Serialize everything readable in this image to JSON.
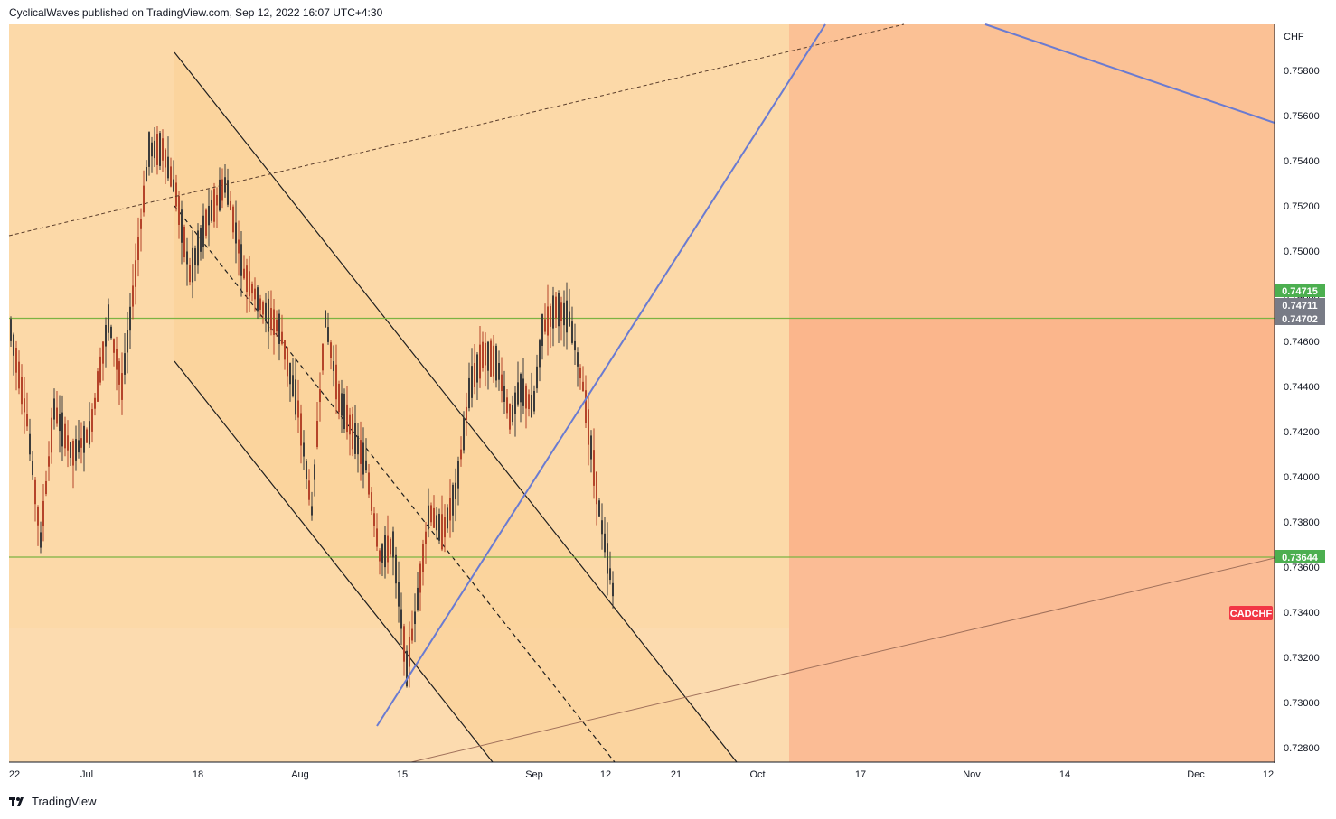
{
  "header": {
    "publisher_text": "CyclicalWaves published on TradingView.com, Sep 12, 2022 16:07 UTC+4:30"
  },
  "footer": {
    "brand": "TradingView"
  },
  "chart_data": {
    "type": "candlestick",
    "symbol": "CADCHF",
    "currency_label": "CHF",
    "ylim": [
      0.727,
      0.7595
    ],
    "y_ticks": [
      0.728,
      0.73,
      0.732,
      0.734,
      0.736,
      0.738,
      0.74,
      0.742,
      0.744,
      0.746,
      0.748,
      0.75,
      0.752,
      0.754,
      0.756,
      0.758
    ],
    "y_tick_labels": [
      "0.72800",
      "0.73000",
      "0.73200",
      "0.73400",
      "0.73600",
      "0.73800",
      "0.74000",
      "0.74200",
      "0.74400",
      "0.74600",
      "0.74800",
      "0.75000",
      "0.75200",
      "0.75400",
      "0.75600",
      "0.75800"
    ],
    "x_tick_labels": [
      "22",
      "Jul",
      "18",
      "Aug",
      "15",
      "Sep",
      "12",
      "21",
      "Oct",
      "17",
      "Nov",
      "14",
      "Dec",
      "12"
    ],
    "price_badges": [
      {
        "label": "0.74715",
        "value": 0.74715,
        "color": "#4caf50"
      },
      {
        "label": "0.74711",
        "value": 0.74711,
        "color": "#787b86"
      },
      {
        "label": "0.74702",
        "value": 0.74702,
        "color": "#787b86"
      },
      {
        "label": "0.73644",
        "value": 0.73644,
        "color": "#4caf50"
      }
    ],
    "symbol_badge": {
      "label": "CADCHF",
      "value": 0.734,
      "color": "#f23645"
    },
    "horizontal_levels": [
      0.74702,
      0.73644
    ],
    "background_color": "#fcd9a8",
    "zone_colors": {
      "projection_upper": "#fbc195",
      "projection_middle": "#fbb68c",
      "projection_lower": "#fbbc95",
      "channel_fill": "#fbd29a"
    },
    "line_colors": {
      "trendline_blue": "#6a7bd1",
      "channel": "#1e1e1e",
      "support_brown": "#a0705a",
      "level_green": "#7cb342"
    }
  }
}
